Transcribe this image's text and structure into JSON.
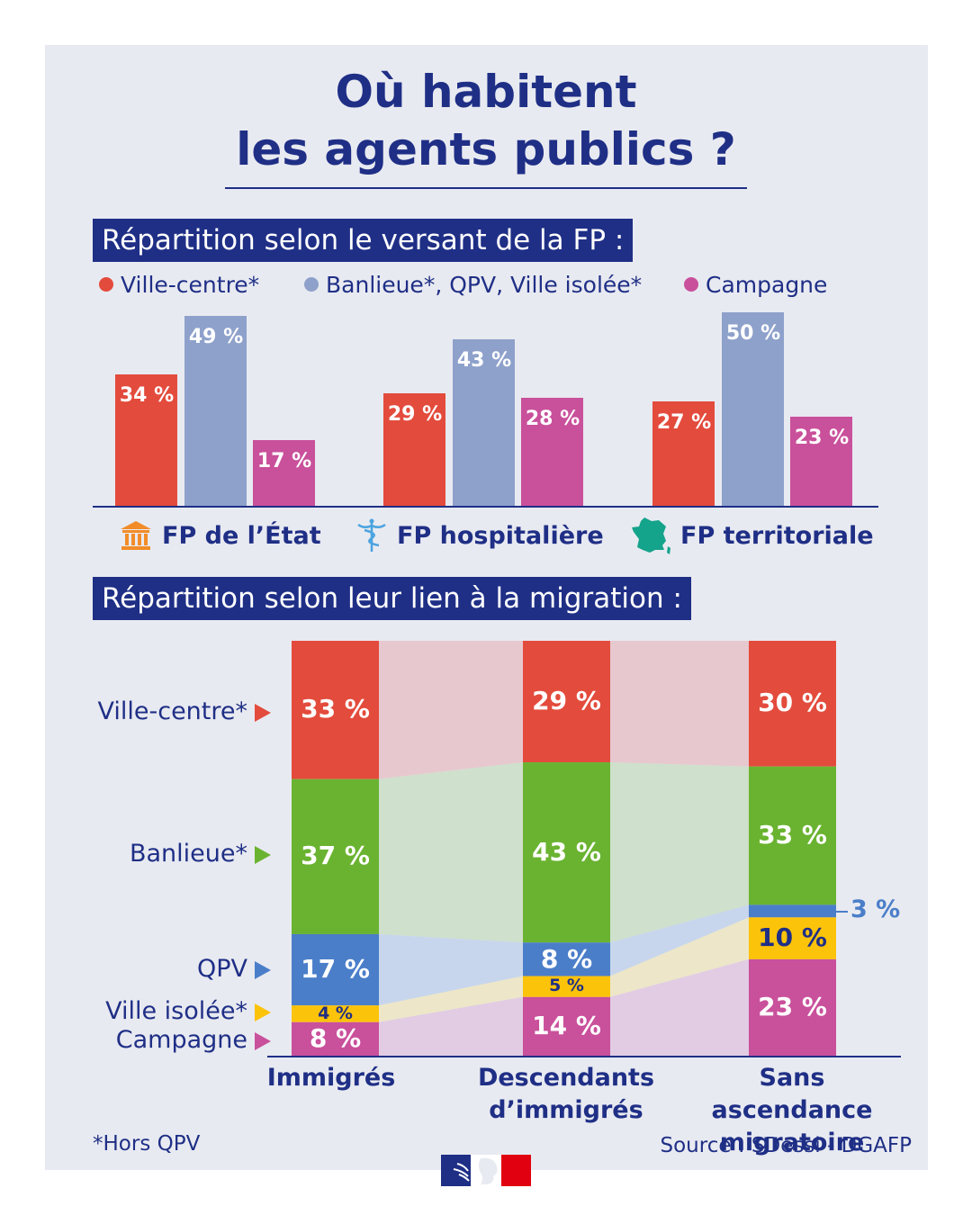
{
  "title": {
    "line1": "Où habitent",
    "line2": "les agents publics ?"
  },
  "section1": {
    "label": "Répartition selon le versant de la FP :",
    "legend": [
      {
        "label": "Ville-centre*",
        "color": "#e34b3c"
      },
      {
        "label": "Banlieue*, QPV, Ville isolée*",
        "color": "#8ea1cb"
      },
      {
        "label": "Campagne",
        "color": "#c9509b"
      }
    ]
  },
  "section2": {
    "label": "Répartition selon leur lien à la migration :"
  },
  "icons": {
    "etat": "government-building-icon",
    "hospital": "caduceus-icon",
    "territorial": "france-map-icon"
  },
  "chart_data": [
    {
      "type": "bar",
      "categories": [
        "FP de l’État",
        "FP hospitalière",
        "FP territoriale"
      ],
      "series": [
        {
          "name": "Ville-centre*",
          "values": [
            34,
            29,
            27
          ],
          "labels": [
            "34 %",
            "29 %",
            "27 %"
          ]
        },
        {
          "name": "Banlieue*, QPV, Ville isolée*",
          "values": [
            49,
            43,
            50
          ],
          "labels": [
            "49 %",
            "43 %",
            "50 %"
          ]
        },
        {
          "name": "Campagne",
          "values": [
            17,
            28,
            23
          ],
          "labels": [
            "17 %",
            "28 %",
            "23 %"
          ]
        }
      ],
      "ylim": [
        0,
        50
      ],
      "grid": false,
      "legend": "top"
    },
    {
      "type": "bar",
      "stacked": true,
      "categories": [
        "Immigrés",
        "Descendants d’immigrés",
        "Sans ascendance migratoire"
      ],
      "category_lines": [
        [
          "Immigrés"
        ],
        [
          "Descendants",
          "d’immigrés"
        ],
        [
          "Sans ascendance",
          "migratoire"
        ]
      ],
      "series": [
        {
          "name": "Ville-centre*",
          "color": "#e34b3c",
          "values": [
            33,
            29,
            30
          ],
          "labels": [
            "33 %",
            "29 %",
            "30 %"
          ]
        },
        {
          "name": "Banlieue*",
          "color": "#6ab330",
          "values": [
            37,
            43,
            33
          ],
          "labels": [
            "37 %",
            "43 %",
            "33 %"
          ]
        },
        {
          "name": "QPV",
          "color": "#4a7ec9",
          "values": [
            17,
            8,
            3
          ],
          "labels": [
            "17 %",
            "8 %",
            "3 %"
          ]
        },
        {
          "name": "Ville isolée*",
          "color": "#fcc30b",
          "values": [
            4,
            5,
            10
          ],
          "labels": [
            "4 %",
            "5 %",
            "10 %"
          ]
        },
        {
          "name": "Campagne",
          "color": "#c9509b",
          "values": [
            8,
            14,
            23
          ],
          "labels": [
            "8 %",
            "14 %",
            "23 %"
          ]
        }
      ],
      "ylim": [
        0,
        100
      ],
      "grid": false
    }
  ],
  "footnote": "*Hors QPV",
  "source": "Source : SDessi - DGAFP"
}
